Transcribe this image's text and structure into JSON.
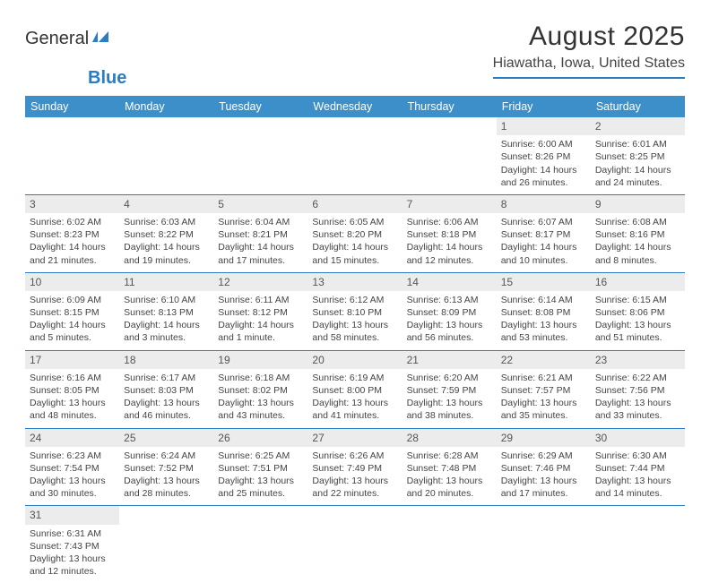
{
  "logo": {
    "word1": "General",
    "word2": "Blue"
  },
  "title": "August 2025",
  "subtitle": "Hiawatha, Iowa, United States",
  "colors": {
    "header_bg": "#3d8fc9",
    "accent": "#2b7cc0",
    "daynum_bg": "#ececec",
    "text": "#333333",
    "body_bg": "#ffffff"
  },
  "typography": {
    "title_fontsize": 30,
    "subtitle_fontsize": 16,
    "header_fontsize": 12.5,
    "cell_fontsize": 10.5,
    "daynum_fontsize": 12
  },
  "days_of_week": [
    "Sunday",
    "Monday",
    "Tuesday",
    "Wednesday",
    "Thursday",
    "Friday",
    "Saturday"
  ],
  "weeks": [
    [
      null,
      null,
      null,
      null,
      null,
      {
        "n": "1",
        "sr": "Sunrise: 6:00 AM",
        "ss": "Sunset: 8:26 PM",
        "d1": "Daylight: 14 hours",
        "d2": "and 26 minutes."
      },
      {
        "n": "2",
        "sr": "Sunrise: 6:01 AM",
        "ss": "Sunset: 8:25 PM",
        "d1": "Daylight: 14 hours",
        "d2": "and 24 minutes."
      }
    ],
    [
      {
        "n": "3",
        "sr": "Sunrise: 6:02 AM",
        "ss": "Sunset: 8:23 PM",
        "d1": "Daylight: 14 hours",
        "d2": "and 21 minutes."
      },
      {
        "n": "4",
        "sr": "Sunrise: 6:03 AM",
        "ss": "Sunset: 8:22 PM",
        "d1": "Daylight: 14 hours",
        "d2": "and 19 minutes."
      },
      {
        "n": "5",
        "sr": "Sunrise: 6:04 AM",
        "ss": "Sunset: 8:21 PM",
        "d1": "Daylight: 14 hours",
        "d2": "and 17 minutes."
      },
      {
        "n": "6",
        "sr": "Sunrise: 6:05 AM",
        "ss": "Sunset: 8:20 PM",
        "d1": "Daylight: 14 hours",
        "d2": "and 15 minutes."
      },
      {
        "n": "7",
        "sr": "Sunrise: 6:06 AM",
        "ss": "Sunset: 8:18 PM",
        "d1": "Daylight: 14 hours",
        "d2": "and 12 minutes."
      },
      {
        "n": "8",
        "sr": "Sunrise: 6:07 AM",
        "ss": "Sunset: 8:17 PM",
        "d1": "Daylight: 14 hours",
        "d2": "and 10 minutes."
      },
      {
        "n": "9",
        "sr": "Sunrise: 6:08 AM",
        "ss": "Sunset: 8:16 PM",
        "d1": "Daylight: 14 hours",
        "d2": "and 8 minutes."
      }
    ],
    [
      {
        "n": "10",
        "sr": "Sunrise: 6:09 AM",
        "ss": "Sunset: 8:15 PM",
        "d1": "Daylight: 14 hours",
        "d2": "and 5 minutes."
      },
      {
        "n": "11",
        "sr": "Sunrise: 6:10 AM",
        "ss": "Sunset: 8:13 PM",
        "d1": "Daylight: 14 hours",
        "d2": "and 3 minutes."
      },
      {
        "n": "12",
        "sr": "Sunrise: 6:11 AM",
        "ss": "Sunset: 8:12 PM",
        "d1": "Daylight: 14 hours",
        "d2": "and 1 minute."
      },
      {
        "n": "13",
        "sr": "Sunrise: 6:12 AM",
        "ss": "Sunset: 8:10 PM",
        "d1": "Daylight: 13 hours",
        "d2": "and 58 minutes."
      },
      {
        "n": "14",
        "sr": "Sunrise: 6:13 AM",
        "ss": "Sunset: 8:09 PM",
        "d1": "Daylight: 13 hours",
        "d2": "and 56 minutes."
      },
      {
        "n": "15",
        "sr": "Sunrise: 6:14 AM",
        "ss": "Sunset: 8:08 PM",
        "d1": "Daylight: 13 hours",
        "d2": "and 53 minutes."
      },
      {
        "n": "16",
        "sr": "Sunrise: 6:15 AM",
        "ss": "Sunset: 8:06 PM",
        "d1": "Daylight: 13 hours",
        "d2": "and 51 minutes."
      }
    ],
    [
      {
        "n": "17",
        "sr": "Sunrise: 6:16 AM",
        "ss": "Sunset: 8:05 PM",
        "d1": "Daylight: 13 hours",
        "d2": "and 48 minutes."
      },
      {
        "n": "18",
        "sr": "Sunrise: 6:17 AM",
        "ss": "Sunset: 8:03 PM",
        "d1": "Daylight: 13 hours",
        "d2": "and 46 minutes."
      },
      {
        "n": "19",
        "sr": "Sunrise: 6:18 AM",
        "ss": "Sunset: 8:02 PM",
        "d1": "Daylight: 13 hours",
        "d2": "and 43 minutes."
      },
      {
        "n": "20",
        "sr": "Sunrise: 6:19 AM",
        "ss": "Sunset: 8:00 PM",
        "d1": "Daylight: 13 hours",
        "d2": "and 41 minutes."
      },
      {
        "n": "21",
        "sr": "Sunrise: 6:20 AM",
        "ss": "Sunset: 7:59 PM",
        "d1": "Daylight: 13 hours",
        "d2": "and 38 minutes."
      },
      {
        "n": "22",
        "sr": "Sunrise: 6:21 AM",
        "ss": "Sunset: 7:57 PM",
        "d1": "Daylight: 13 hours",
        "d2": "and 35 minutes."
      },
      {
        "n": "23",
        "sr": "Sunrise: 6:22 AM",
        "ss": "Sunset: 7:56 PM",
        "d1": "Daylight: 13 hours",
        "d2": "and 33 minutes."
      }
    ],
    [
      {
        "n": "24",
        "sr": "Sunrise: 6:23 AM",
        "ss": "Sunset: 7:54 PM",
        "d1": "Daylight: 13 hours",
        "d2": "and 30 minutes."
      },
      {
        "n": "25",
        "sr": "Sunrise: 6:24 AM",
        "ss": "Sunset: 7:52 PM",
        "d1": "Daylight: 13 hours",
        "d2": "and 28 minutes."
      },
      {
        "n": "26",
        "sr": "Sunrise: 6:25 AM",
        "ss": "Sunset: 7:51 PM",
        "d1": "Daylight: 13 hours",
        "d2": "and 25 minutes."
      },
      {
        "n": "27",
        "sr": "Sunrise: 6:26 AM",
        "ss": "Sunset: 7:49 PM",
        "d1": "Daylight: 13 hours",
        "d2": "and 22 minutes."
      },
      {
        "n": "28",
        "sr": "Sunrise: 6:28 AM",
        "ss": "Sunset: 7:48 PM",
        "d1": "Daylight: 13 hours",
        "d2": "and 20 minutes."
      },
      {
        "n": "29",
        "sr": "Sunrise: 6:29 AM",
        "ss": "Sunset: 7:46 PM",
        "d1": "Daylight: 13 hours",
        "d2": "and 17 minutes."
      },
      {
        "n": "30",
        "sr": "Sunrise: 6:30 AM",
        "ss": "Sunset: 7:44 PM",
        "d1": "Daylight: 13 hours",
        "d2": "and 14 minutes."
      }
    ],
    [
      {
        "n": "31",
        "sr": "Sunrise: 6:31 AM",
        "ss": "Sunset: 7:43 PM",
        "d1": "Daylight: 13 hours",
        "d2": "and 12 minutes."
      },
      null,
      null,
      null,
      null,
      null,
      null
    ]
  ]
}
